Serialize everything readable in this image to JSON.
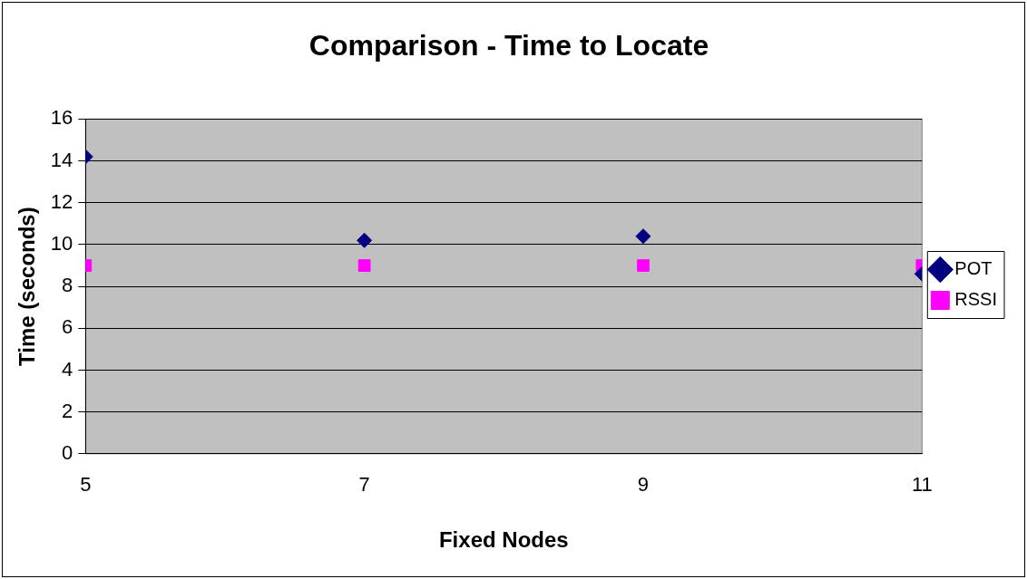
{
  "chart_data": {
    "type": "scatter",
    "title": "Comparison - Time to Locate",
    "xlabel": "Fixed Nodes",
    "ylabel": "Time (seconds)",
    "x": [
      5,
      7,
      9,
      11
    ],
    "xlim": [
      5,
      11
    ],
    "xticks": [
      5,
      7,
      9,
      11
    ],
    "ylim": [
      0,
      16
    ],
    "yticks": [
      0,
      2,
      4,
      6,
      8,
      10,
      12,
      14,
      16
    ],
    "grid": "y",
    "legend": "right",
    "series": [
      {
        "name": "POT",
        "color": "#000080",
        "marker": "diamond",
        "values": [
          14.2,
          10.2,
          10.4,
          8.6
        ]
      },
      {
        "name": "RSSI",
        "color": "#ff00ff",
        "marker": "square",
        "values": [
          9,
          9,
          9,
          9
        ]
      }
    ]
  }
}
